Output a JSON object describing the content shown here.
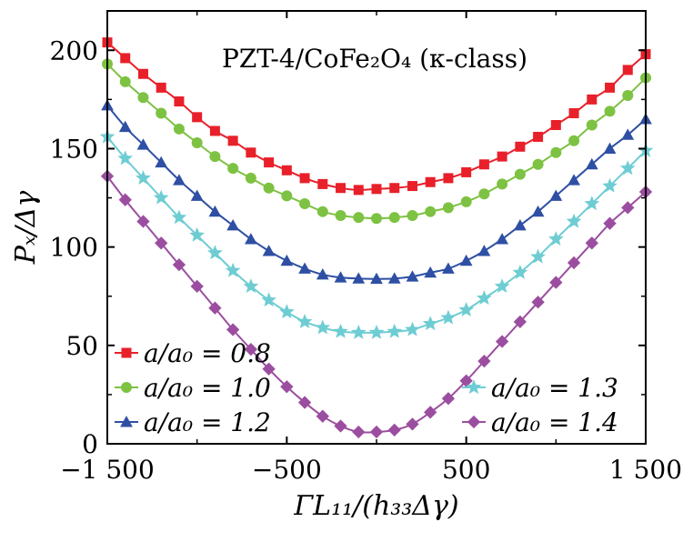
{
  "chart_data": {
    "type": "line",
    "title": "PZT-4/CoFe₂O₄ (κ-class)",
    "xlabel": "ΓL₁₁/(h₃₃Δγ)",
    "ylabel": "Pₓ/Δγ",
    "xlim": [
      -1500,
      1500
    ],
    "ylim": [
      0,
      220
    ],
    "xticks": [
      -1500,
      -500,
      500,
      1500
    ],
    "xtick_labels": [
      "−1 500",
      "−500",
      "500",
      "1 500"
    ],
    "yticks": [
      0,
      50,
      100,
      150,
      200
    ],
    "ytick_labels": [
      "0",
      "50",
      "100",
      "150",
      "200"
    ],
    "grid": false,
    "legend_left": "bottom-left",
    "legend_right": "bottom-right",
    "series": [
      {
        "name": "a/a₀ = 0.8",
        "color": "#e8202a",
        "marker": "square",
        "legend_pos": "left",
        "x": [
          -1500,
          -1400,
          -1300,
          -1200,
          -1100,
          -1000,
          -900,
          -800,
          -700,
          -600,
          -500,
          -400,
          -300,
          -200,
          -100,
          0,
          100,
          200,
          300,
          400,
          500,
          600,
          700,
          800,
          900,
          1000,
          1100,
          1200,
          1300,
          1400,
          1500
        ],
        "y": [
          204,
          196,
          188,
          181,
          174,
          166,
          159,
          154,
          148,
          143,
          139,
          135,
          132,
          130,
          129,
          129.5,
          130,
          131,
          133,
          135,
          138,
          142,
          146,
          151,
          156,
          162,
          168,
          175,
          181,
          190,
          198
        ]
      },
      {
        "name": "a/a₀ = 1.0",
        "color": "#7dc242",
        "marker": "circle",
        "legend_pos": "left",
        "x": [
          -1500,
          -1400,
          -1300,
          -1200,
          -1100,
          -1000,
          -900,
          -800,
          -700,
          -600,
          -500,
          -400,
          -300,
          -200,
          -100,
          0,
          100,
          200,
          300,
          400,
          500,
          600,
          700,
          800,
          900,
          1000,
          1100,
          1200,
          1300,
          1400,
          1500
        ],
        "y": [
          193,
          184,
          176,
          168,
          160,
          153,
          146,
          140,
          135,
          130,
          126,
          122,
          118,
          116,
          115,
          114.5,
          115,
          116,
          118,
          120,
          123,
          127,
          132,
          137,
          142,
          148,
          154,
          162,
          169,
          177,
          186
        ]
      },
      {
        "name": "a/a₀ = 1.2",
        "color": "#2e4fa3",
        "marker": "triangle",
        "legend_pos": "left",
        "x": [
          -1500,
          -1400,
          -1300,
          -1200,
          -1100,
          -1000,
          -900,
          -800,
          -700,
          -600,
          -500,
          -400,
          -300,
          -200,
          -100,
          0,
          100,
          200,
          300,
          400,
          500,
          600,
          700,
          800,
          900,
          1000,
          1100,
          1200,
          1300,
          1400,
          1500
        ],
        "y": [
          172,
          161,
          152,
          143,
          134,
          126,
          118,
          111,
          104,
          98,
          93,
          89,
          86,
          84.5,
          84,
          83.8,
          84,
          85,
          87,
          89,
          93,
          98,
          104,
          111,
          118,
          126,
          134,
          142,
          150,
          157,
          165
        ]
      },
      {
        "name": "a/a₀ = 1.3",
        "color": "#6ecdd3",
        "marker": "star",
        "legend_pos": "right",
        "x": [
          -1500,
          -1400,
          -1300,
          -1200,
          -1100,
          -1000,
          -900,
          -800,
          -700,
          -600,
          -500,
          -400,
          -300,
          -200,
          -100,
          0,
          100,
          200,
          300,
          400,
          500,
          600,
          700,
          800,
          900,
          1000,
          1100,
          1200,
          1300,
          1400,
          1500
        ],
        "y": [
          156,
          145,
          135,
          125,
          115,
          106,
          97,
          88,
          80,
          73,
          67,
          62,
          59,
          57,
          56.5,
          56.5,
          57,
          58,
          61,
          64,
          68,
          74,
          80,
          87,
          95,
          104,
          113,
          122,
          131,
          140,
          149
        ]
      },
      {
        "name": "a/a₀ = 1.4",
        "color": "#9b4ea0",
        "marker": "diamond",
        "legend_pos": "right",
        "x": [
          -1500,
          -1400,
          -1300,
          -1200,
          -1100,
          -1000,
          -900,
          -800,
          -700,
          -600,
          -500,
          -400,
          -300,
          -200,
          -100,
          0,
          100,
          200,
          300,
          400,
          500,
          600,
          700,
          800,
          900,
          1000,
          1100,
          1200,
          1300,
          1400,
          1500
        ],
        "y": [
          136,
          124,
          113,
          102,
          91,
          80,
          69,
          58,
          48,
          38,
          29,
          21,
          14,
          9,
          6,
          6,
          7,
          10,
          16,
          23,
          32,
          42,
          52,
          62,
          72,
          82,
          92,
          102,
          112,
          120,
          128
        ]
      }
    ]
  }
}
